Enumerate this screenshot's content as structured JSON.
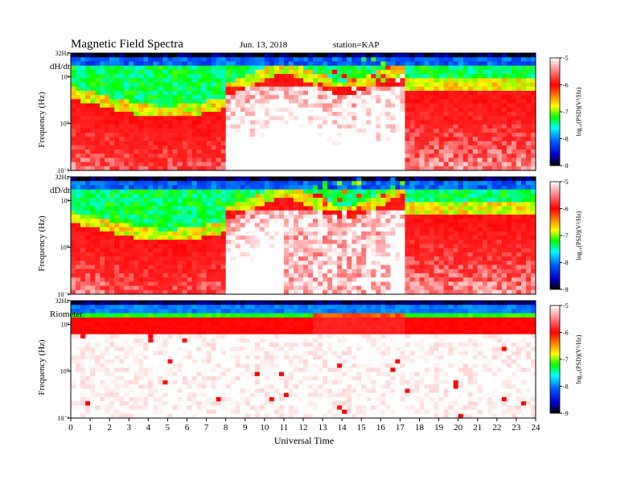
{
  "header": {
    "title": "Magnetic  Field  Spectra",
    "date": "Jun. 13, 2018",
    "station": "station=KAP"
  },
  "chart_data": [
    {
      "type": "heatmap",
      "panel_label": "dH/dt",
      "ylabel": "Frequency  (Hz)",
      "y_scale": "log",
      "ylim": [
        0.1,
        32
      ],
      "y_ticks": [
        {
          "value": 32,
          "label": "32Hz"
        },
        {
          "value": 10,
          "label": "10¹"
        },
        {
          "value": 1,
          "label": "10⁰"
        },
        {
          "value": 0.1,
          "label": "10⁻¹"
        }
      ],
      "xlim": [
        0,
        24
      ],
      "colorbar": {
        "label": "log₁₀(PSD)(V²/Hz)",
        "range": [
          -9,
          -5
        ],
        "ticks": [
          "-5",
          "-6",
          "-7",
          "-8",
          "-9"
        ]
      },
      "dominant_features": "broadband red enhancement 8-17 UT, saturated (white) patches near 9-10 UT and 15-16.5 UT"
    },
    {
      "type": "heatmap",
      "panel_label": "dD/dt",
      "ylabel": "Frequency  (Hz)",
      "y_scale": "log",
      "ylim": [
        0.1,
        32
      ],
      "y_ticks": [
        {
          "value": 32,
          "label": "32Hz"
        },
        {
          "value": 10,
          "label": "10¹"
        },
        {
          "value": 1,
          "label": "10⁰"
        },
        {
          "value": 0.1,
          "label": "10⁻¹"
        }
      ],
      "xlim": [
        0,
        24
      ],
      "colorbar": {
        "label": "log₁₀(PSD)(V²/Hz)",
        "range": [
          -9,
          -5
        ],
        "ticks": [
          "-5",
          "-6",
          "-7",
          "-8",
          "-9"
        ]
      },
      "dominant_features": "white low-frequency region 11-17 UT, broadband enhancement 8-17 UT"
    },
    {
      "type": "heatmap",
      "panel_label": "Riometer",
      "ylabel": "Frequency  (Hz)",
      "y_scale": "log",
      "ylim": [
        0.1,
        32
      ],
      "y_ticks": [
        {
          "value": 32,
          "label": "32Hz"
        },
        {
          "value": 10,
          "label": "10¹"
        },
        {
          "value": 1,
          "label": "10⁰"
        },
        {
          "value": 0.1,
          "label": "10⁻¹"
        }
      ],
      "xlim": [
        0,
        24
      ],
      "xlabel": "Universal Time",
      "x_ticks": [
        "0",
        "1",
        "2",
        "3",
        "4",
        "5",
        "6",
        "7",
        "8",
        "9",
        "10",
        "11",
        "12",
        "13",
        "14",
        "15",
        "16",
        "17",
        "18",
        "19",
        "20",
        "21",
        "22",
        "23",
        "24"
      ],
      "colorbar": {
        "label": "log₁₀(PSD)(V²/Hz)",
        "range": [
          -9,
          -5
        ],
        "ticks": [
          "-5",
          "-6",
          "-7",
          "-8",
          "-9"
        ]
      },
      "dominant_features": "band of high power above ~5 Hz, mostly white (saturated/low) below"
    }
  ]
}
